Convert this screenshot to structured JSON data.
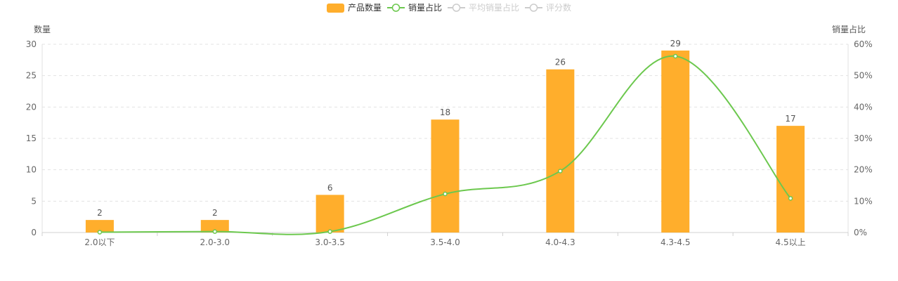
{
  "chart_data": {
    "type": "bar",
    "categories": [
      "2.0以下",
      "2.0-3.0",
      "3.0-3.5",
      "3.5-4.0",
      "4.0-4.3",
      "4.3-4.5",
      "4.5以上"
    ],
    "series": [
      {
        "name": "产品数量",
        "type": "bar",
        "axis": "left",
        "values": [
          2,
          2,
          6,
          18,
          26,
          29,
          17
        ],
        "color": "#FFAE2C",
        "data_labels": true
      },
      {
        "name": "销量占比",
        "type": "line",
        "axis": "right",
        "smooth": true,
        "values": [
          0.1,
          0.3,
          0.3,
          12.3,
          19.6,
          56.2,
          10.9
        ],
        "color": "#6CC84E"
      }
    ],
    "legend": {
      "position": "top-center",
      "items": [
        {
          "name": "产品数量",
          "symbol": "bar",
          "active": true,
          "color": "#FFAE2C"
        },
        {
          "name": "销量占比",
          "symbol": "line",
          "active": true,
          "color": "#6CC84E"
        },
        {
          "name": "平均销量占比",
          "symbol": "line",
          "active": false,
          "color": "#CCCCCC"
        },
        {
          "name": "评分数",
          "symbol": "line",
          "active": false,
          "color": "#CCCCCC"
        }
      ]
    },
    "ylabel": "数量",
    "ylabel_right": "销量占比",
    "ylim": [
      0,
      30
    ],
    "ylim_right": [
      0,
      60
    ],
    "yticks": [
      "0",
      "5",
      "10",
      "15",
      "20",
      "25",
      "30"
    ],
    "yticks_right": [
      "0%",
      "10%",
      "20%",
      "30%",
      "40%",
      "50%",
      "60%"
    ],
    "grid": "horizontal-dashed"
  }
}
